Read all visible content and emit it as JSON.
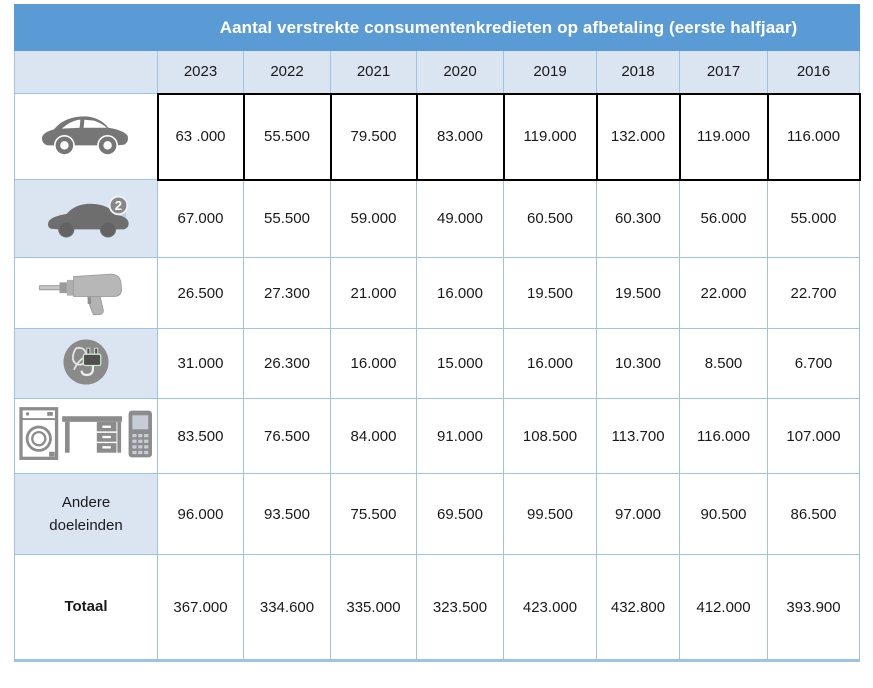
{
  "table": {
    "title": "Aantal verstrekte consumentenkredieten op afbetaling (eerste halfjaar)",
    "years": [
      "2023",
      "2022",
      "2021",
      "2020",
      "2019",
      "2018",
      "2017",
      "2016"
    ],
    "rows": [
      {
        "label": "",
        "icon": "new-car-icon",
        "zebra": false,
        "highlight": true,
        "bold": false,
        "values": [
          "63 .000",
          "55.500",
          "79.500",
          "83.000",
          "119.000",
          "132.000",
          "119.000",
          "116.000"
        ]
      },
      {
        "label": "",
        "icon": "used-car-icon",
        "zebra": true,
        "highlight": false,
        "bold": false,
        "values": [
          "67.000",
          "55.500",
          "59.000",
          "49.000",
          "60.500",
          "60.300",
          "56.000",
          "55.000"
        ]
      },
      {
        "label": "",
        "icon": "drill-icon",
        "zebra": false,
        "highlight": false,
        "bold": false,
        "values": [
          "26.500",
          "27.300",
          "21.000",
          "16.000",
          "19.500",
          "19.500",
          "22.000",
          "22.700"
        ]
      },
      {
        "label": "",
        "icon": "green-energy-icon",
        "zebra": true,
        "highlight": false,
        "bold": false,
        "values": [
          "31.000",
          "26.300",
          "16.000",
          "15.000",
          "16.000",
          "10.300",
          "8.500",
          "6.700"
        ]
      },
      {
        "label": "",
        "icon": "appliances-icon",
        "zebra": false,
        "highlight": false,
        "bold": false,
        "values": [
          "83.500",
          "76.500",
          "84.000",
          "91.000",
          "108.500",
          "113.700",
          "116.000",
          "107.000"
        ]
      },
      {
        "label": "Andere doeleinden",
        "icon": null,
        "zebra": true,
        "highlight": false,
        "bold": false,
        "values": [
          "96.000",
          "93.500",
          "75.500",
          "69.500",
          "99.500",
          "97.000",
          "90.500",
          "86.500"
        ]
      },
      {
        "label": "Totaal",
        "icon": null,
        "zebra": false,
        "highlight": false,
        "bold": true,
        "values": [
          "367.000",
          "334.600",
          "335.000",
          "323.500",
          "423.000",
          "432.800",
          "412.000",
          "393.900"
        ]
      }
    ],
    "colors": {
      "title_bg": "#5B9BD5",
      "title_text": "#FFFFFF",
      "header_bg": "#DBE5F1",
      "grid_border": "#9DC3E6",
      "highlight_border": "#000000",
      "icon_gray": "#7F7F7F",
      "value_text": "#1A1A1A"
    },
    "used_car_badge": "2"
  }
}
